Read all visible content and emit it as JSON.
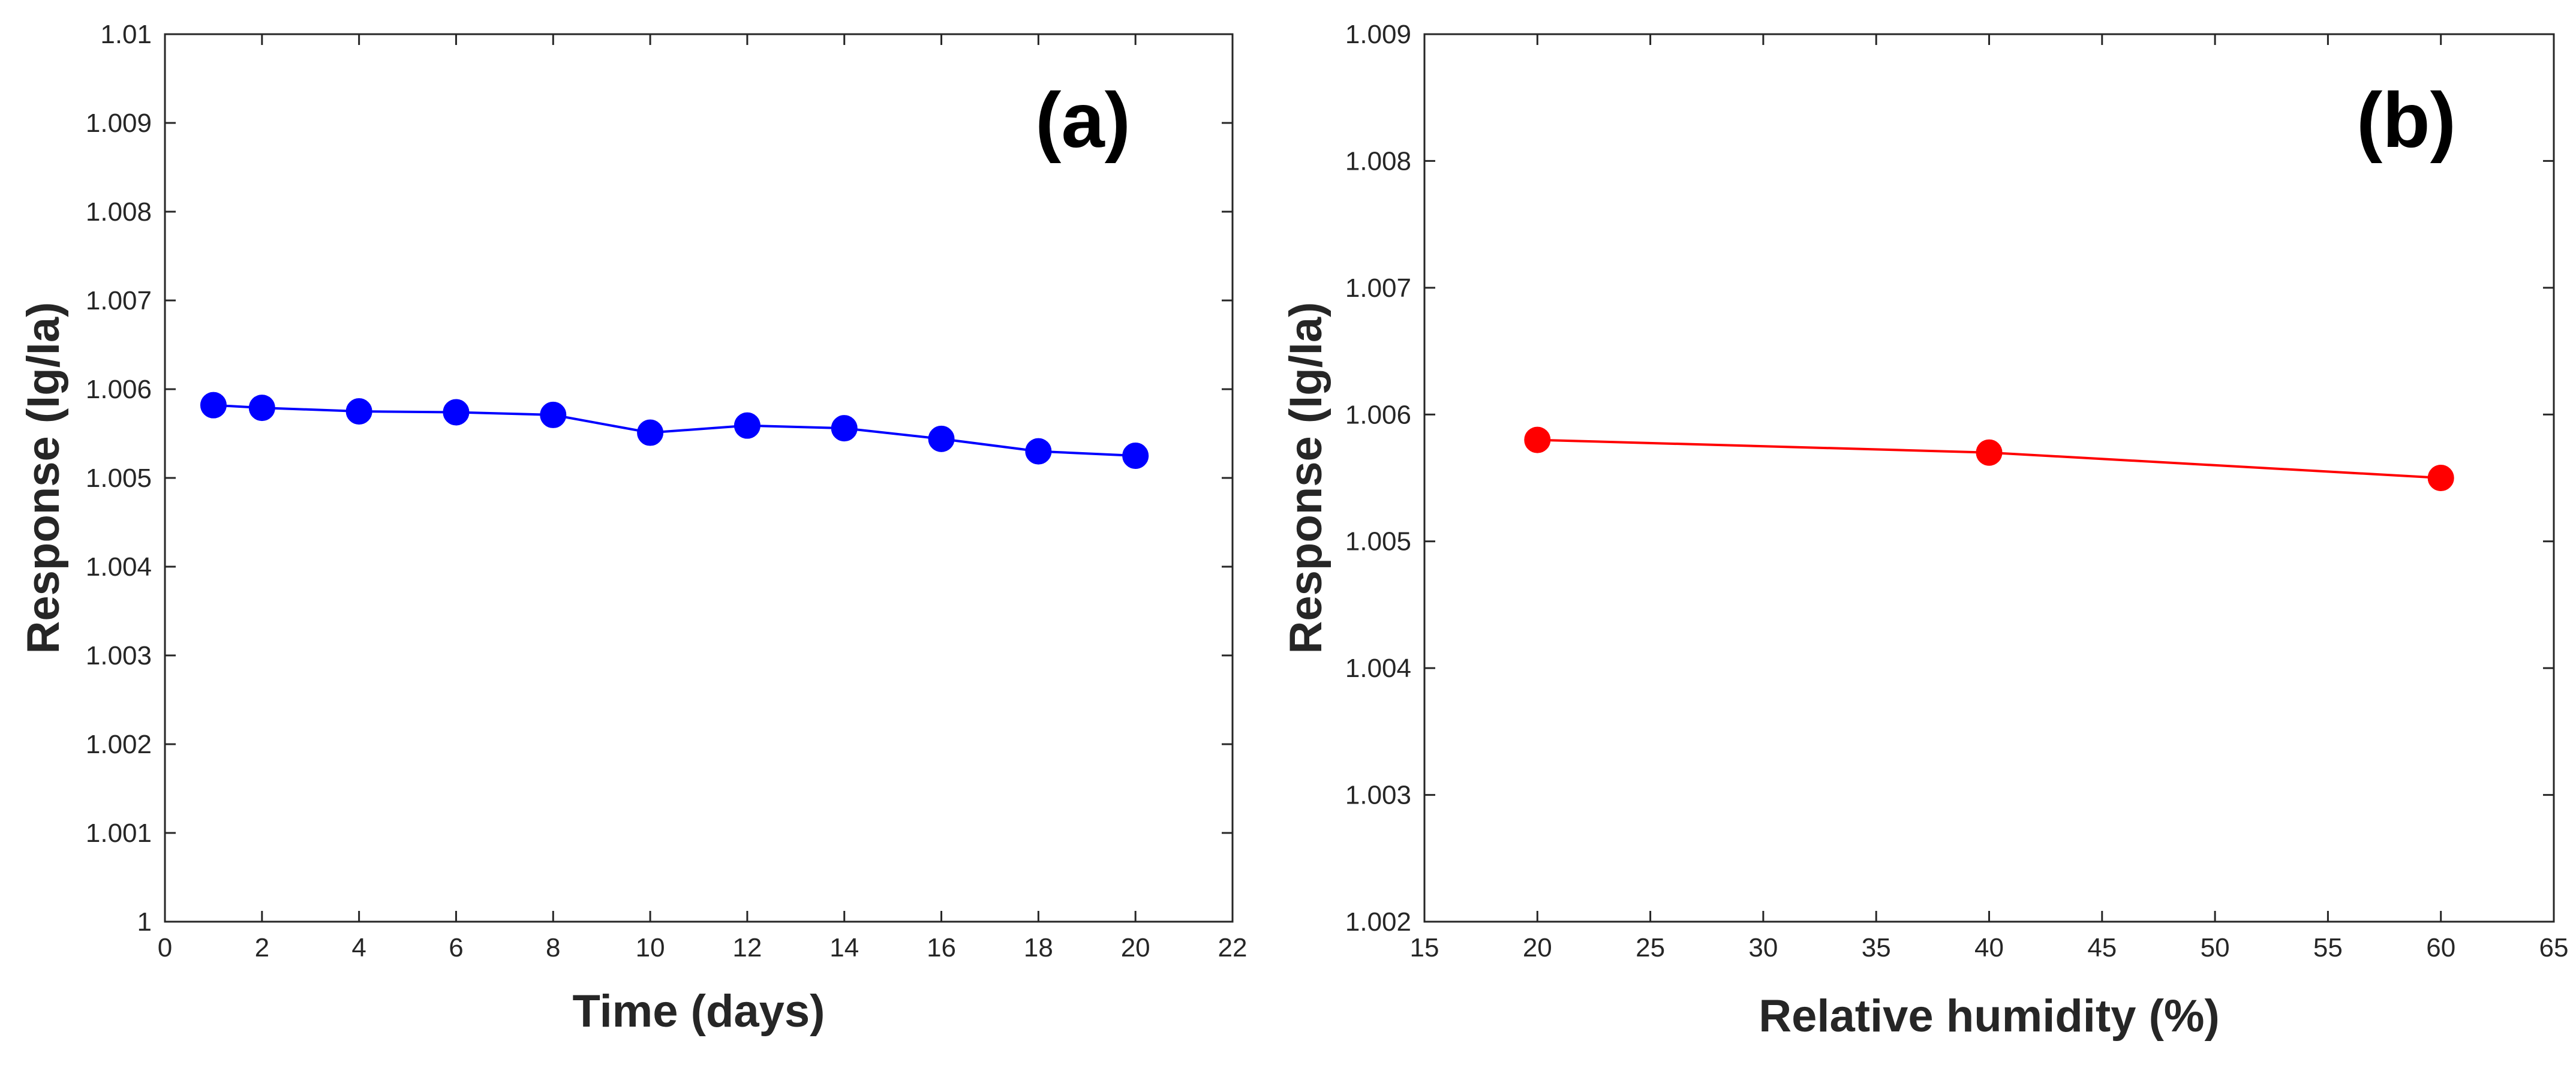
{
  "chart_data": [
    {
      "type": "line",
      "panel_label": "(a)",
      "title": "",
      "xlabel": "Time (days)",
      "ylabel": "Response (Ig/Ia)",
      "xlim": [
        0,
        22
      ],
      "ylim": [
        1.0,
        1.01
      ],
      "xticks": [
        0,
        2,
        4,
        6,
        8,
        10,
        12,
        14,
        16,
        18,
        20,
        22
      ],
      "xtick_labels": [
        "0",
        "2",
        "4",
        "6",
        "8",
        "10",
        "12",
        "14",
        "16",
        "18",
        "20",
        "22"
      ],
      "yticks": [
        1.0,
        1.001,
        1.002,
        1.003,
        1.004,
        1.005,
        1.006,
        1.007,
        1.008,
        1.009,
        1.01
      ],
      "ytick_labels": [
        "1",
        "1.001",
        "1.002",
        "1.003",
        "1.004",
        "1.005",
        "1.006",
        "1.007",
        "1.008",
        "1.009",
        "1.01"
      ],
      "grid": false,
      "color": "#0000ff",
      "series": [
        {
          "name": "Response",
          "x": [
            1,
            2,
            4,
            6,
            8,
            10,
            12,
            14,
            16,
            18,
            20
          ],
          "y": [
            1.00582,
            1.00579,
            1.00575,
            1.00574,
            1.00571,
            1.00551,
            1.00559,
            1.00556,
            1.00544,
            1.0053,
            1.00525
          ]
        }
      ]
    },
    {
      "type": "line",
      "panel_label": "(b)",
      "title": "",
      "xlabel": "Relative humidity (%)",
      "ylabel": "Response (Ig/Ia)",
      "xlim": [
        15,
        65
      ],
      "ylim": [
        1.002,
        1.009
      ],
      "xticks": [
        15,
        20,
        25,
        30,
        35,
        40,
        45,
        50,
        55,
        60,
        65
      ],
      "xtick_labels": [
        "15",
        "20",
        "25",
        "30",
        "35",
        "40",
        "45",
        "50",
        "55",
        "60",
        "65"
      ],
      "yticks": [
        1.002,
        1.003,
        1.004,
        1.005,
        1.006,
        1.007,
        1.008,
        1.009
      ],
      "ytick_labels": [
        "1.002",
        "1.003",
        "1.004",
        "1.005",
        "1.006",
        "1.007",
        "1.008",
        "1.009"
      ],
      "grid": false,
      "color": "#ff0000",
      "series": [
        {
          "name": "Response",
          "x": [
            20,
            40,
            60
          ],
          "y": [
            1.0058,
            1.0057,
            1.0055
          ]
        }
      ]
    }
  ]
}
